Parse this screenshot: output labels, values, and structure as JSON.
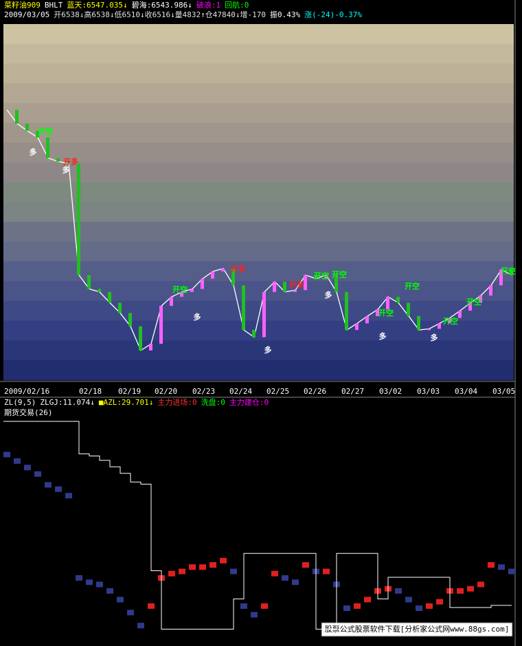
{
  "header": {
    "line1": [
      {
        "text": "菜籽油909",
        "color": "#ffff00"
      },
      {
        "text": "BHLT",
        "color": "#ffffff"
      },
      {
        "text": "蓝天:6547.035↓",
        "color": "#ffff00"
      },
      {
        "text": "碧海:6543.986↓",
        "color": "#ffffff"
      },
      {
        "text": "破浪:1",
        "color": "#ff00ff"
      },
      {
        "text": "回航:0",
        "color": "#00ff00"
      }
    ],
    "line2": [
      {
        "text": "2009/03/05",
        "color": "#ffffff"
      },
      {
        "text": "开6538↓高6538↓低6510↓收6516↓量4832↑仓47840↓增-170",
        "color": "#e0e0e0"
      },
      {
        "text": "振0.43%",
        "color": "#ffffff"
      },
      {
        "text": "涨(-24)-0.37%",
        "color": "#00ffff"
      }
    ]
  },
  "price_panel": {
    "ylim": [
      6342,
      6932
    ],
    "color": "#ffffff",
    "closes": [
      6790,
      6767,
      6755,
      6744,
      6710,
      6704,
      6701,
      6516,
      6493,
      6488,
      6470,
      6453,
      6431,
      6391,
      6402,
      6465,
      6480,
      6488,
      6493,
      6510,
      6522,
      6527,
      6499,
      6425,
      6413,
      6488,
      6505,
      6488,
      6491,
      6516,
      6510,
      6516,
      6488,
      6425,
      6436,
      6448,
      6459,
      6480,
      6470,
      6448,
      6425,
      6427,
      6436,
      6445,
      6457,
      6470,
      6482,
      6499,
      6525,
      6516
    ],
    "annotations": [
      {
        "text": "开空",
        "color": "#00ff00"
      },
      {
        "text": "开多",
        "color": "#ff2020"
      },
      {
        "text": "开空",
        "color": "#00ff00"
      },
      {
        "text": "开多",
        "color": "#ff2020"
      },
      {
        "text": "开多",
        "color": "#ff2020"
      },
      {
        "text": "开空",
        "color": "#00ff00"
      },
      {
        "text": "开空",
        "color": "#00ff00"
      },
      {
        "text": "开空",
        "color": "#00ff00"
      },
      {
        "text": "开空",
        "color": "#00ff00"
      },
      {
        "text": "开空",
        "color": "#00ff00"
      },
      {
        "text": "开空",
        "color": "#00ff00"
      },
      {
        "text": "开空",
        "color": "#00ff00"
      },
      {
        "text": "多",
        "color": "#ffffff"
      },
      {
        "text": "多",
        "color": "#ffffff"
      },
      {
        "text": "多",
        "color": "#ffffff"
      },
      {
        "text": "多",
        "color": "#ffffff"
      },
      {
        "text": "多",
        "color": "#ffffff"
      },
      {
        "text": "多",
        "color": "#ffffff"
      },
      {
        "text": "多",
        "color": "#ffffff"
      }
    ]
  },
  "dates": [
    "2009/02/16",
    "02/18",
    "02/19",
    "02/20",
    "02/23",
    "02/24",
    "02/25",
    "02/26",
    "02/27",
    "03/02",
    "03/03",
    "03/04",
    "03/05"
  ],
  "indicator": {
    "items": [
      {
        "text": "ZL(9,5)",
        "color": "#ffffff"
      },
      {
        "text": "ZLGJ:11.074↓",
        "color": "#ffffff"
      },
      {
        "text": "■AZL:29.701↓",
        "color": "#ffff00"
      },
      {
        "text": "主力进场:0",
        "color": "#ff3030"
      },
      {
        "text": "洗盘:0",
        "color": "#00ff00"
      },
      {
        "text": "主力建仓:0",
        "color": "#ff00ff"
      }
    ],
    "panel_title": "期货交易(26)",
    "ylim": [
      0,
      100
    ],
    "rise_color": "#e02020",
    "fall_color": "#303a8a",
    "line_color": "#ffffff",
    "values": [
      84,
      81,
      78,
      75,
      70,
      68,
      65,
      27,
      25,
      24,
      21,
      17,
      11,
      5,
      14,
      27,
      29,
      30,
      32,
      32,
      33,
      35,
      30,
      14,
      10,
      14,
      29,
      27,
      25,
      33,
      30,
      30,
      24,
      13,
      14,
      17,
      21,
      22,
      21,
      17,
      13,
      14,
      16,
      21,
      21,
      22,
      24,
      33,
      32,
      30
    ],
    "line": [
      99,
      99,
      99,
      99,
      99,
      99,
      99,
      84,
      83,
      81,
      78,
      75,
      71,
      70,
      30,
      3,
      3,
      3,
      3,
      3,
      3,
      3,
      17,
      38,
      38,
      38,
      38,
      38,
      38,
      38,
      3,
      3,
      38,
      38,
      38,
      38,
      17,
      27,
      27,
      27,
      27,
      27,
      27,
      13,
      13,
      13,
      13,
      14,
      14,
      14
    ]
  },
  "watermark": "股票公式股票软件下载[分析家公式网www.88gs.com]"
}
